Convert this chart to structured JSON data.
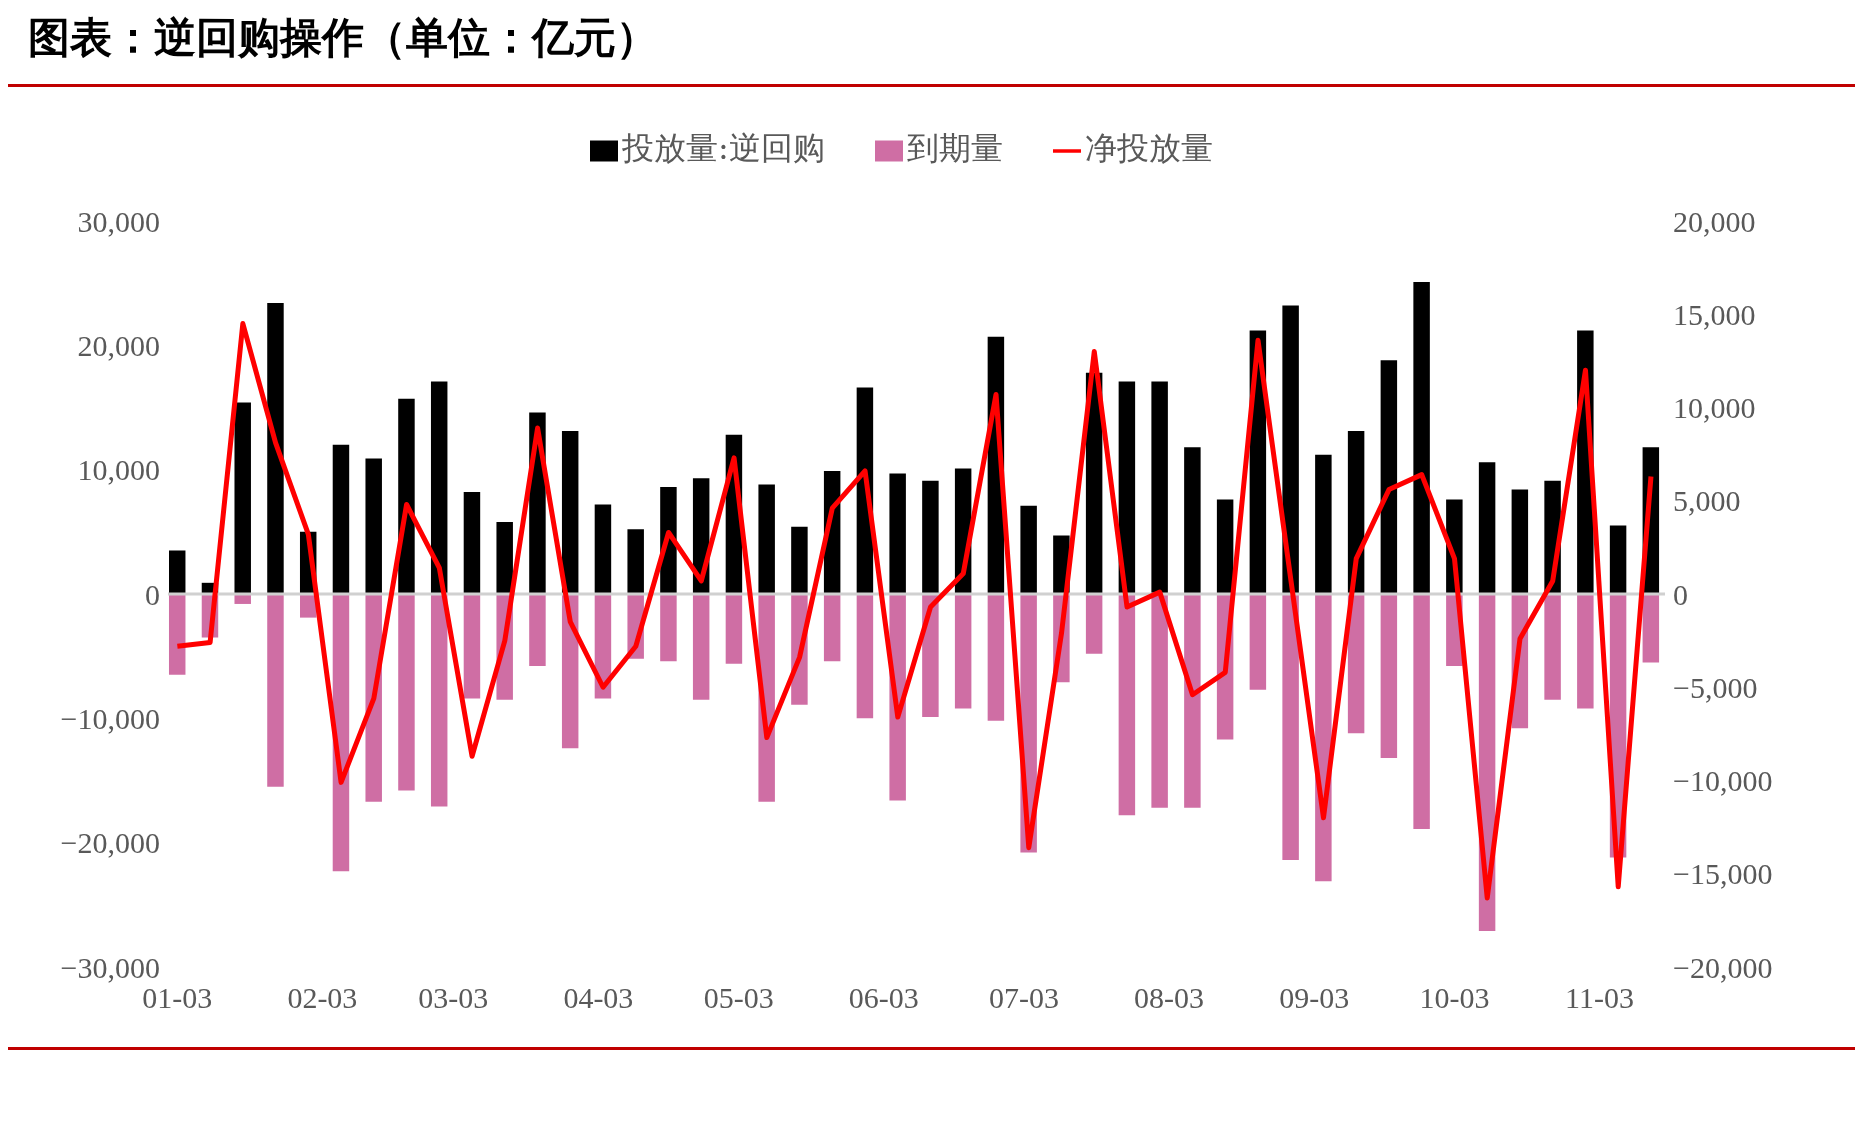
{
  "chart_data": {
    "type": "bar",
    "title": "图表：逆回购操作（单位：亿元）",
    "stacked": true,
    "legend": "top",
    "x": [
      "--01-03",
      "--01-10",
      "--01-17",
      "--01-24",
      "--01-31",
      "--02-07",
      "--02-14",
      "--02-21",
      "--02-28",
      "--03-07",
      "--03-14",
      "--03-21",
      "--03-28",
      "--04-04",
      "--04-11",
      "--04-18",
      "--04-25",
      "--05-02",
      "--05-09",
      "--05-16",
      "--05-23",
      "--05-30",
      "--06-06",
      "--06-13",
      "--06-20",
      "--06-27",
      "--07-04",
      "--07-11",
      "--07-18",
      "--07-25",
      "--08-01",
      "--08-08",
      "--08-15",
      "--08-22",
      "--08-29",
      "--09-05",
      "--09-12",
      "--09-19",
      "--09-26",
      "--10-03",
      "--10-10",
      "--10-17",
      "--10-24",
      "--10-31",
      "--11-07",
      "--11-14"
    ],
    "xlim": [
      "--01-01",
      "--11-17"
    ],
    "xticks": [
      {
        "value": "--01-03",
        "label": "01-03"
      },
      {
        "value": "--02-03",
        "label": "02-03"
      },
      {
        "value": "--03-03",
        "label": "03-03"
      },
      {
        "value": "--04-03",
        "label": "04-03"
      },
      {
        "value": "--05-03",
        "label": "05-03"
      },
      {
        "value": "--06-03",
        "label": "06-03"
      },
      {
        "value": "--07-03",
        "label": "07-03"
      },
      {
        "value": "--08-03",
        "label": "08-03"
      },
      {
        "value": "--09-03",
        "label": "09-03"
      },
      {
        "value": "--10-03",
        "label": "10-03"
      },
      {
        "value": "--11-03",
        "label": "11-03"
      }
    ],
    "ylim": [
      -30000,
      30000
    ],
    "yticks": [
      {
        "value": -30000,
        "label": "−30,000"
      },
      {
        "value": -20000,
        "label": "−20,000"
      },
      {
        "value": -10000,
        "label": "−10,000"
      },
      0,
      {
        "value": 10000,
        "label": "10,000"
      },
      {
        "value": 20000,
        "label": "20,000"
      },
      {
        "value": 30000,
        "label": "30,000"
      }
    ],
    "y2lim": [
      -20000,
      20000
    ],
    "y2ticks": [
      {
        "value": -20000,
        "label": "−20,000"
      },
      {
        "value": -15000,
        "label": "−15,000"
      },
      {
        "value": -10000,
        "label": "−10,000"
      },
      {
        "value": -5000,
        "label": "−5,000"
      },
      0,
      {
        "value": 5000,
        "label": "5,000"
      },
      {
        "value": 10000,
        "label": "10,000"
      },
      {
        "value": 15000,
        "label": "15,000"
      },
      {
        "value": 20000,
        "label": "20,000"
      }
    ],
    "series": [
      {
        "name": "投放量:逆回购",
        "color": "#000000",
        "values": [
          3500,
          900,
          15400,
          23400,
          5000,
          12000,
          10900,
          15700,
          17100,
          8200,
          5800,
          14600,
          13100,
          7200,
          5200,
          8600,
          9300,
          12800,
          8800,
          5400,
          9900,
          16600,
          9700,
          9100,
          10100,
          20700,
          7100,
          4700,
          17800,
          17100,
          17100,
          11800,
          7600,
          21200,
          23200,
          11200,
          13100,
          18800,
          25100,
          7600,
          10600,
          8400,
          9100,
          21200,
          5500,
          11800
        ]
      },
      {
        "name": "到期量",
        "color": "#cf6ea4",
        "values": [
          -6500,
          -3500,
          -800,
          -15500,
          -1900,
          -22300,
          -16700,
          -15800,
          -17100,
          -8400,
          -8500,
          -5800,
          -12400,
          -8400,
          -5200,
          -5400,
          -8500,
          -5600,
          -16700,
          -8900,
          -5400,
          -10000,
          -16600,
          -9900,
          -9200,
          -10200,
          -20800,
          -7100,
          -4800,
          -17800,
          -17200,
          -17200,
          -11700,
          -7700,
          -21400,
          -23100,
          -11200,
          -13200,
          -18900,
          -5800,
          -27100,
          -10800,
          -8500,
          -9200,
          -21200,
          -5500
        ]
      },
      {
        "name": "净投放量",
        "type": "line",
        "axis": "y2",
        "color": "#ff0000",
        "marker": "none",
        "line_style": "solid",
        "values": [
          -2800,
          -2600,
          14500,
          8100,
          3200,
          -10100,
          -5600,
          4800,
          1400,
          -8700,
          -2500,
          8900,
          -1500,
          -5000,
          -2800,
          3300,
          700,
          7300,
          -7700,
          -3400,
          4600,
          6600,
          -6600,
          -700,
          1100,
          10700,
          -13600,
          -2100,
          13000,
          -700,
          100,
          -5400,
          -4200,
          13600,
          800,
          -12000,
          1900,
          5600,
          6400,
          1900,
          -16300,
          -2400,
          700,
          12000,
          -15700,
          6300
        ]
      }
    ]
  }
}
